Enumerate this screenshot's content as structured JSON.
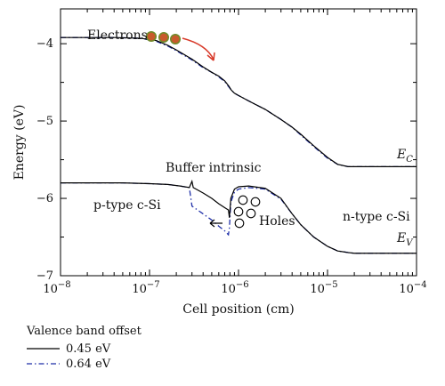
{
  "chart_data": {
    "type": "line",
    "xlabel": "Cell position (cm)",
    "ylabel": "Energy (eV)",
    "x_scale": "log",
    "xlim": [
      1e-08,
      0.0001
    ],
    "ylim": [
      -7,
      -3.55
    ],
    "x_ticks": [
      {
        "value": 1e-08,
        "base": "10",
        "exp": "−8"
      },
      {
        "value": 1e-07,
        "base": "10",
        "exp": "−7"
      },
      {
        "value": 1e-06,
        "base": "10",
        "exp": "−6"
      },
      {
        "value": 1e-05,
        "base": "10",
        "exp": "−5"
      },
      {
        "value": 0.0001,
        "base": "10",
        "exp": "−4"
      }
    ],
    "y_ticks": [
      {
        "value": -4,
        "label": "−4"
      },
      {
        "value": -5,
        "label": "−5"
      },
      {
        "value": -6,
        "label": "−6"
      },
      {
        "value": -7,
        "label": "−7"
      }
    ],
    "grid": false,
    "legend": {
      "title": "Valence band offset",
      "position": "below-left",
      "entries": [
        "0.45 eV",
        "0.64 eV"
      ]
    },
    "colors": {
      "series_1": "#000000",
      "series_2": "#1f2fa8",
      "arrow": "#d83a2a",
      "electron_fill": "#c85a2c",
      "electron_edge": "#6f8a2a"
    },
    "series": [
      {
        "name": "0.45 eV",
        "band": "E_C",
        "points": [
          [
            1e-08,
            -3.92
          ],
          [
            4e-08,
            -3.92
          ],
          [
            8e-08,
            -3.93
          ],
          [
            1.2e-07,
            -3.96
          ],
          [
            1.6e-07,
            -4.02
          ],
          [
            2e-07,
            -4.08
          ],
          [
            3e-07,
            -4.2
          ],
          [
            4e-07,
            -4.3
          ],
          [
            5e-07,
            -4.37
          ],
          [
            6e-07,
            -4.42
          ],
          [
            7e-07,
            -4.48
          ],
          [
            7.8e-07,
            -4.55
          ],
          [
            8.3e-07,
            -4.6
          ],
          [
            9e-07,
            -4.64
          ],
          [
            1e-06,
            -4.67
          ],
          [
            1.3e-06,
            -4.74
          ],
          [
            2e-06,
            -4.85
          ],
          [
            3e-06,
            -4.98
          ],
          [
            4e-06,
            -5.08
          ],
          [
            5e-06,
            -5.17
          ],
          [
            7e-06,
            -5.32
          ],
          [
            1e-05,
            -5.47
          ],
          [
            1.3e-05,
            -5.56
          ],
          [
            1.7e-05,
            -5.59
          ],
          [
            2e-05,
            -5.59
          ],
          [
            0.0001,
            -5.59
          ]
        ]
      },
      {
        "name": "0.64 eV",
        "band": "E_C",
        "points": [
          [
            1e-08,
            -3.92
          ],
          [
            4e-08,
            -3.92
          ],
          [
            8e-08,
            -3.93
          ],
          [
            1.2e-07,
            -3.97
          ],
          [
            1.6e-07,
            -4.03
          ],
          [
            2e-07,
            -4.09
          ],
          [
            3e-07,
            -4.21
          ],
          [
            4e-07,
            -4.31
          ],
          [
            5e-07,
            -4.37
          ],
          [
            6e-07,
            -4.43
          ],
          [
            7e-07,
            -4.49
          ],
          [
            7.8e-07,
            -4.56
          ],
          [
            8.3e-07,
            -4.6
          ],
          [
            9e-07,
            -4.64
          ],
          [
            1e-06,
            -4.67
          ],
          [
            1.3e-06,
            -4.74
          ],
          [
            2e-06,
            -4.85
          ],
          [
            3e-06,
            -4.98
          ],
          [
            4e-06,
            -5.08
          ],
          [
            5e-06,
            -5.18
          ],
          [
            7e-06,
            -5.33
          ],
          [
            1e-05,
            -5.48
          ],
          [
            1.3e-05,
            -5.56
          ],
          [
            1.7e-05,
            -5.59
          ],
          [
            2e-05,
            -5.59
          ],
          [
            0.0001,
            -5.59
          ]
        ]
      },
      {
        "name": "0.45 eV",
        "band": "E_V",
        "points": [
          [
            1e-08,
            -5.8
          ],
          [
            5e-08,
            -5.8
          ],
          [
            1e-07,
            -5.81
          ],
          [
            1.6e-07,
            -5.82
          ],
          [
            2.2e-07,
            -5.84
          ],
          [
            2.8e-07,
            -5.86
          ],
          [
            3e-07,
            -5.78
          ],
          [
            3.1e-07,
            -5.86
          ],
          [
            4e-07,
            -5.93
          ],
          [
            5e-07,
            -6.0
          ],
          [
            6e-07,
            -6.07
          ],
          [
            7e-07,
            -6.12
          ],
          [
            7.7e-07,
            -6.15
          ],
          [
            7.9e-07,
            -6.25
          ],
          [
            8.2e-07,
            -6.0
          ],
          [
            9e-07,
            -5.88
          ],
          [
            1e-06,
            -5.85
          ],
          [
            1.3e-06,
            -5.84
          ],
          [
            2e-06,
            -5.87
          ],
          [
            3e-06,
            -6.0
          ],
          [
            4e-06,
            -6.2
          ],
          [
            5e-06,
            -6.34
          ],
          [
            7e-06,
            -6.5
          ],
          [
            1e-05,
            -6.62
          ],
          [
            1.3e-05,
            -6.68
          ],
          [
            1.7e-05,
            -6.7
          ],
          [
            2e-05,
            -6.71
          ],
          [
            0.0001,
            -6.71
          ]
        ]
      },
      {
        "name": "0.64 eV",
        "band": "E_V",
        "points": [
          [
            1e-08,
            -5.8
          ],
          [
            5e-08,
            -5.8
          ],
          [
            1e-07,
            -5.81
          ],
          [
            1.6e-07,
            -5.82
          ],
          [
            2.2e-07,
            -5.84
          ],
          [
            2.8e-07,
            -5.86
          ],
          [
            3e-07,
            -6.1
          ],
          [
            4e-07,
            -6.2
          ],
          [
            5e-07,
            -6.28
          ],
          [
            6e-07,
            -6.36
          ],
          [
            7e-07,
            -6.42
          ],
          [
            7.7e-07,
            -6.47
          ],
          [
            7.9e-07,
            -6.38
          ],
          [
            8.2e-07,
            -6.05
          ],
          [
            9e-07,
            -5.92
          ],
          [
            1e-06,
            -5.88
          ],
          [
            1.3e-06,
            -5.86
          ],
          [
            2e-06,
            -5.88
          ],
          [
            3e-06,
            -6.01
          ],
          [
            4e-06,
            -6.2
          ],
          [
            5e-06,
            -6.34
          ],
          [
            7e-06,
            -6.5
          ],
          [
            1e-05,
            -6.62
          ],
          [
            1.3e-05,
            -6.68
          ],
          [
            1.7e-05,
            -6.7
          ],
          [
            2e-05,
            -6.71
          ],
          [
            0.0001,
            -6.71
          ]
        ]
      }
    ],
    "annotations": {
      "electrons": "Electrons",
      "buffer": "Buffer intrinsic",
      "p_type": "p-type c-Si",
      "holes": "Holes",
      "n_type": "n-type c-Si",
      "ec_main": "E",
      "ec_sub": "C",
      "ev_main": "E",
      "ev_sub": "V"
    }
  }
}
